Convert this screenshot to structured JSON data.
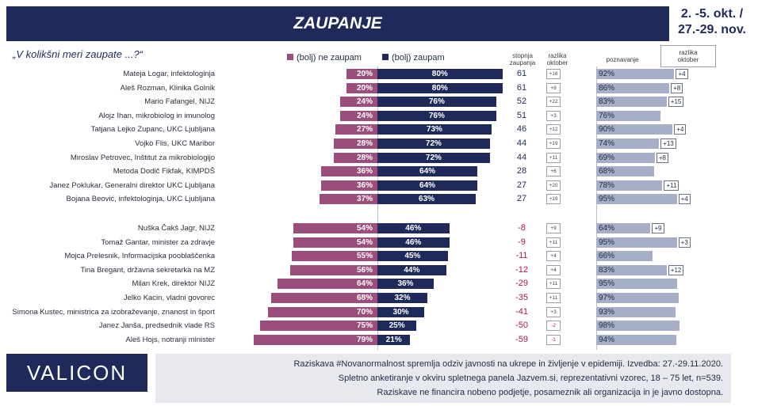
{
  "title": "ZAUPANJE",
  "date_line1": "2. -5. okt. /",
  "date_line2": "27.-29. nov.",
  "question": "„V kolikšni meri zaupate ...?“",
  "legend": {
    "neg": "(bolj) ne zaupam",
    "pos": "(bolj) zaupam"
  },
  "headers": {
    "stopnja_1": "stopnja",
    "stopnja_2": "zaupanja",
    "razlika_1": "razlika",
    "razlika_2": "oktober",
    "poznavanje": "poznavanje",
    "razlika2_1": "razlika",
    "razlika2_2": "oktober"
  },
  "colors": {
    "neg": "#9b4d7c",
    "pos": "#1f2a5a",
    "aware": "#a6aec8",
    "negative_text": "#b0174a",
    "navy": "#1f2a5a"
  },
  "chart_data": {
    "type": "bar",
    "rows": [
      {
        "name": "Mateja Logar, infektologinja",
        "neg": 20,
        "neg_label": "20%",
        "pos": 80,
        "pos_label": "80%",
        "stopnja": 61,
        "stopnja_label": "61",
        "diff": "+16",
        "aware": 92,
        "aware_label": "92%",
        "aware_diff": "+4"
      },
      {
        "name": "Aleš Rozman, Klinika Golnik",
        "neg": 20,
        "neg_label": "20%",
        "pos": 80,
        "pos_label": "80%",
        "stopnja": 61,
        "stopnja_label": "61",
        "diff": "+8",
        "aware": 86,
        "aware_label": "86%",
        "aware_diff": "+8"
      },
      {
        "name": "Mario Fafangel, NIJZ",
        "neg": 24,
        "neg_label": "24%",
        "pos": 76,
        "pos_label": "76%",
        "stopnja": 52,
        "stopnja_label": "52",
        "diff": "+22",
        "aware": 83,
        "aware_label": "83%",
        "aware_diff": "+15"
      },
      {
        "name": "Alojz Ihan, mikrobiolog in imunolog",
        "neg": 24,
        "neg_label": "24%",
        "pos": 76,
        "pos_label": "76%",
        "stopnja": 51,
        "stopnja_label": "51",
        "diff": "+3",
        "aware": 76,
        "aware_label": "76%",
        "aware_diff": ""
      },
      {
        "name": "Tatjana Lejko Zupanc, UKC Ljubljana",
        "neg": 27,
        "neg_label": "27%",
        "pos": 73,
        "pos_label": "73%",
        "stopnja": 46,
        "stopnja_label": "46",
        "diff": "+12",
        "aware": 90,
        "aware_label": "90%",
        "aware_diff": "+4"
      },
      {
        "name": "Vojko Flis, UKC Maribor",
        "neg": 28,
        "neg_label": "28%",
        "pos": 72,
        "pos_label": "72%",
        "stopnja": 44,
        "stopnja_label": "44",
        "diff": "+19",
        "aware": 74,
        "aware_label": "74%",
        "aware_diff": "+13"
      },
      {
        "name": "Miroslav Petrovec, Inštitut za mikrobiologijo",
        "neg": 28,
        "neg_label": "28%",
        "pos": 72,
        "pos_label": "72%",
        "stopnja": 44,
        "stopnja_label": "44",
        "diff": "+11",
        "aware": 69,
        "aware_label": "69%",
        "aware_diff": "+8"
      },
      {
        "name": "Metoda Dodič Fikfak, KIMPDŠ",
        "neg": 36,
        "neg_label": "36%",
        "pos": 64,
        "pos_label": "64%",
        "stopnja": 28,
        "stopnja_label": "28",
        "diff": "+6",
        "aware": 68,
        "aware_label": "68%",
        "aware_diff": ""
      },
      {
        "name": "Janez Poklukar, Generalni direktor UKC Ljubljana",
        "neg": 36,
        "neg_label": "36%",
        "pos": 64,
        "pos_label": "64%",
        "stopnja": 27,
        "stopnja_label": "27",
        "diff": "+20",
        "aware": 78,
        "aware_label": "78%",
        "aware_diff": "+11"
      },
      {
        "name": "Bojana Beović, infektologinja, UKC Ljubljana",
        "neg": 37,
        "neg_label": "37%",
        "pos": 63,
        "pos_label": "63%",
        "stopnja": 27,
        "stopnja_label": "27",
        "diff": "+19",
        "aware": 95,
        "aware_label": "95%",
        "aware_diff": "+4"
      },
      {
        "name": "Nuška Čakš Jagr, NIJZ",
        "neg": 54,
        "neg_label": "54%",
        "pos": 46,
        "pos_label": "46%",
        "stopnja": -8,
        "stopnja_label": "-8",
        "diff": "+9",
        "aware": 64,
        "aware_label": "64%",
        "aware_diff": "+9"
      },
      {
        "name": "Tomaž Gantar, minister za zdravje",
        "neg": 54,
        "neg_label": "54%",
        "pos": 46,
        "pos_label": "46%",
        "stopnja": -9,
        "stopnja_label": "-9",
        "diff": "+11",
        "aware": 95,
        "aware_label": "95%",
        "aware_diff": "+3"
      },
      {
        "name": "Mojca Prelesnik, Informacijska pooblaščenka",
        "neg": 55,
        "neg_label": "55%",
        "pos": 45,
        "pos_label": "45%",
        "stopnja": -11,
        "stopnja_label": "-11",
        "diff": "+4",
        "aware": 66,
        "aware_label": "66%",
        "aware_diff": ""
      },
      {
        "name": "Tina Bregant, državna sekretarka na MZ",
        "neg": 56,
        "neg_label": "56%",
        "pos": 44,
        "pos_label": "44%",
        "stopnja": -12,
        "stopnja_label": "-12",
        "diff": "+4",
        "aware": 83,
        "aware_label": "83%",
        "aware_diff": "+12"
      },
      {
        "name": "Milan Krek, direktor NIJZ",
        "neg": 64,
        "neg_label": "64%",
        "pos": 36,
        "pos_label": "36%",
        "stopnja": -29,
        "stopnja_label": "-29",
        "diff": "+11",
        "aware": 95,
        "aware_label": "95%",
        "aware_diff": ""
      },
      {
        "name": "Jelko Kacin, vladni govorec",
        "neg": 68,
        "neg_label": "68%",
        "pos": 32,
        "pos_label": "32%",
        "stopnja": -35,
        "stopnja_label": "-35",
        "diff": "+11",
        "aware": 97,
        "aware_label": "97%",
        "aware_diff": ""
      },
      {
        "name": "Simona Kustec, ministrica za izobraževanje, znanost in šport",
        "neg": 70,
        "neg_label": "70%",
        "pos": 30,
        "pos_label": "30%",
        "stopnja": -41,
        "stopnja_label": "-41",
        "diff": "+3",
        "aware": 93,
        "aware_label": "93%",
        "aware_diff": ""
      },
      {
        "name": "Janez Janša, predsednik vlade RS",
        "neg": 75,
        "neg_label": "75%",
        "pos": 25,
        "pos_label": "25%",
        "stopnja": -50,
        "stopnja_label": "-50",
        "diff": "-2",
        "aware": 98,
        "aware_label": "98%",
        "aware_diff": ""
      },
      {
        "name": "Aleš Hojs, notranji minister",
        "neg": 79,
        "neg_label": "79%",
        "pos": 21,
        "pos_label": "21%",
        "stopnja": -59,
        "stopnja_label": "-59",
        "diff": "-1",
        "aware": 94,
        "aware_label": "94%",
        "aware_diff": ""
      }
    ]
  },
  "logo": "VALICON",
  "footer": {
    "line1": "Raziskava #Novanormalnost spremlja  odziv javnosti  na ukrepe in življenje v epidemiji.  Izvedba: 27.-29.11.2020.",
    "line2": "Spletno anketiranje v okviru  spletnega panela Jazvem.si, reprezentativni vzorec, 18 – 75 let, n=539.",
    "line3": "Raziskave ne financira nobeno podjetje, posameznik ali organizacija in je javno dostopna."
  }
}
